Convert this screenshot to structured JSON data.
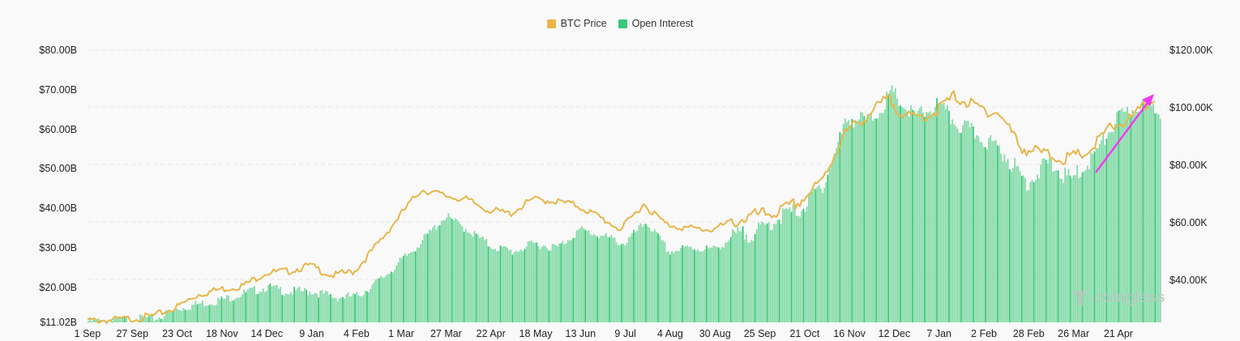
{
  "legend": [
    {
      "label": "BTC Price",
      "color": "#e8b64a"
    },
    {
      "label": "Open Interest",
      "color": "#3cc878"
    }
  ],
  "watermark": "coinglass",
  "annotation": {
    "type": "arrow",
    "color": "#f23cf0",
    "from": "26 Mar lows",
    "to": "late Apr highs"
  },
  "chart_data": {
    "type": "bar+line",
    "title": "",
    "legend_position": "top-center",
    "grid": "horizontal dashed",
    "x_tick_labels": [
      "1 Sep",
      "27 Sep",
      "23 Oct",
      "18 Nov",
      "14 Dec",
      "9 Jan",
      "4 Feb",
      "1 Mar",
      "27 Mar",
      "22 Apr",
      "18 May",
      "13 Jun",
      "9 Jul",
      "4 Aug",
      "30 Aug",
      "25 Sep",
      "21 Oct",
      "16 Nov",
      "12 Dec",
      "7 Jan",
      "2 Feb",
      "28 Feb",
      "26 Mar",
      "21 Apr"
    ],
    "y_left": {
      "label": "Open Interest",
      "ticks": [
        "$11.02B",
        "$20.00B",
        "$30.00B",
        "$40.00B",
        "$50.00B",
        "$60.00B",
        "$70.00B",
        "$80.00B"
      ],
      "range": [
        11.02,
        80
      ],
      "unit": "B USD"
    },
    "y_right": {
      "label": "BTC Price",
      "ticks": [
        "$40.00K",
        "$60.00K",
        "$80.00K",
        "$100.00K",
        "$120.00K"
      ],
      "range": [
        24.4,
        120
      ],
      "unit": "K USD"
    },
    "x": [
      "1 Sep",
      "14 Sep",
      "27 Sep",
      "10 Oct",
      "23 Oct",
      "5 Nov",
      "18 Nov",
      "1 Dec",
      "14 Dec",
      "27 Dec",
      "9 Jan",
      "22 Jan",
      "4 Feb",
      "17 Feb",
      "1 Mar",
      "14 Mar",
      "27 Mar",
      "9 Apr",
      "22 Apr",
      "5 May",
      "18 May",
      "31 May",
      "13 Jun",
      "26 Jun",
      "9 Jul",
      "22 Jul",
      "4 Aug",
      "17 Aug",
      "30 Aug",
      "12 Sep",
      "25 Sep",
      "8 Oct",
      "21 Oct",
      "3 Nov",
      "16 Nov",
      "29 Nov",
      "12 Dec",
      "25 Dec",
      "7 Jan",
      "20 Jan",
      "2 Feb",
      "15 Feb",
      "28 Feb",
      "13 Mar",
      "26 Mar",
      "8 Apr",
      "21 Apr",
      "4 May",
      "12 May"
    ],
    "series": [
      {
        "name": "Open Interest",
        "axis": "left",
        "unit": "B USD",
        "values": [
          11.3,
          11.5,
          11.9,
          12.0,
          14.5,
          15.8,
          16.8,
          18.5,
          20.0,
          18.8,
          19.0,
          17.5,
          17.6,
          21.5,
          26.5,
          32.0,
          38.0,
          34.5,
          30.5,
          29.0,
          31.0,
          30.0,
          34.5,
          33.0,
          31.0,
          36.5,
          29.0,
          30.0,
          29.5,
          33.0,
          34.0,
          38.0,
          40.0,
          47.0,
          63.0,
          62.0,
          69.0,
          63.0,
          66.0,
          61.0,
          58.0,
          54.0,
          46.5,
          51.5,
          47.0,
          53.0,
          62.0,
          66.0,
          65.0
        ]
      },
      {
        "name": "BTC Price",
        "axis": "right",
        "unit": "K USD",
        "values": [
          25.8,
          26.0,
          26.5,
          27.5,
          30.5,
          35.0,
          36.8,
          38.0,
          42.5,
          43.0,
          45.0,
          41.5,
          43.0,
          52.0,
          62.0,
          71.5,
          69.5,
          68.0,
          64.5,
          63.0,
          68.0,
          67.5,
          66.0,
          62.0,
          57.5,
          66.5,
          59.5,
          58.0,
          57.5,
          60.0,
          62.5,
          63.5,
          67.0,
          74.0,
          90.5,
          97.0,
          103.0,
          96.0,
          98.0,
          104.0,
          100.0,
          98.0,
          86.0,
          84.0,
          82.0,
          84.5,
          93.0,
          96.5,
          103.5
        ]
      }
    ]
  }
}
